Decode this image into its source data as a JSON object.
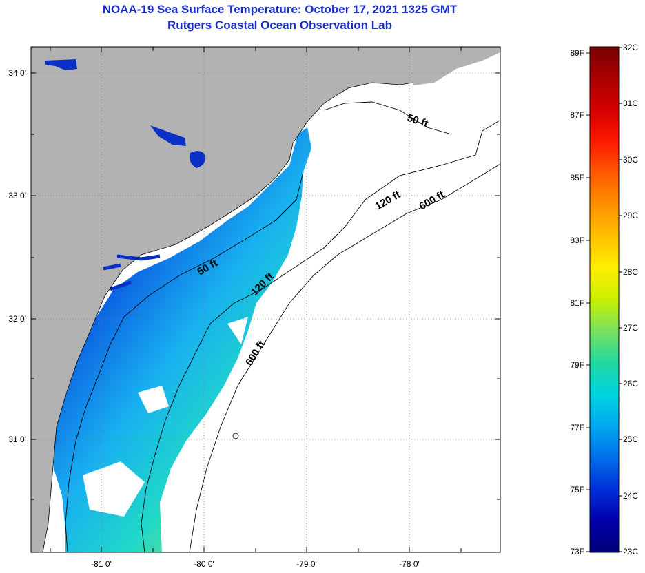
{
  "header": {
    "title": "NOAA-19 Sea Surface Temperature:  October 17, 2021 1325 GMT",
    "subtitle": "Rutgers Coastal Ocean Observation Lab"
  },
  "map": {
    "lon_labels": [
      "-81 0'",
      "-80 0'",
      "-79 0'",
      "-78 0'"
    ],
    "lat_labels": [
      "34 0'",
      "33 0'",
      "32 0'",
      "31 0'"
    ],
    "contours": {
      "c50_a": "50 ft",
      "c50_b": "50 ft",
      "c120_a": "120 ft",
      "c120_b": "120 ft",
      "c600_a": "600 ft",
      "c600_b": "600 ft"
    },
    "land_color": "#b2b2b2",
    "ocean_nodata_color": "#ffffff"
  },
  "colorbar": {
    "fahrenheit": [
      "89F",
      "87F",
      "85F",
      "83F",
      "81F",
      "79F",
      "77F",
      "75F",
      "73F"
    ],
    "celsius": [
      "32C",
      "31C",
      "30C",
      "29C",
      "28C",
      "27C",
      "26C",
      "25C",
      "24C",
      "23C"
    ],
    "colors": [
      "#7a0000",
      "#a80000",
      "#d40000",
      "#ff1a00",
      "#ff5a00",
      "#ff9000",
      "#ffc000",
      "#ffee00",
      "#c8f000",
      "#78e060",
      "#20d8a0",
      "#00d4e0",
      "#00a8f0",
      "#0070e8",
      "#0030d8",
      "#0000a8",
      "#00007a"
    ]
  }
}
